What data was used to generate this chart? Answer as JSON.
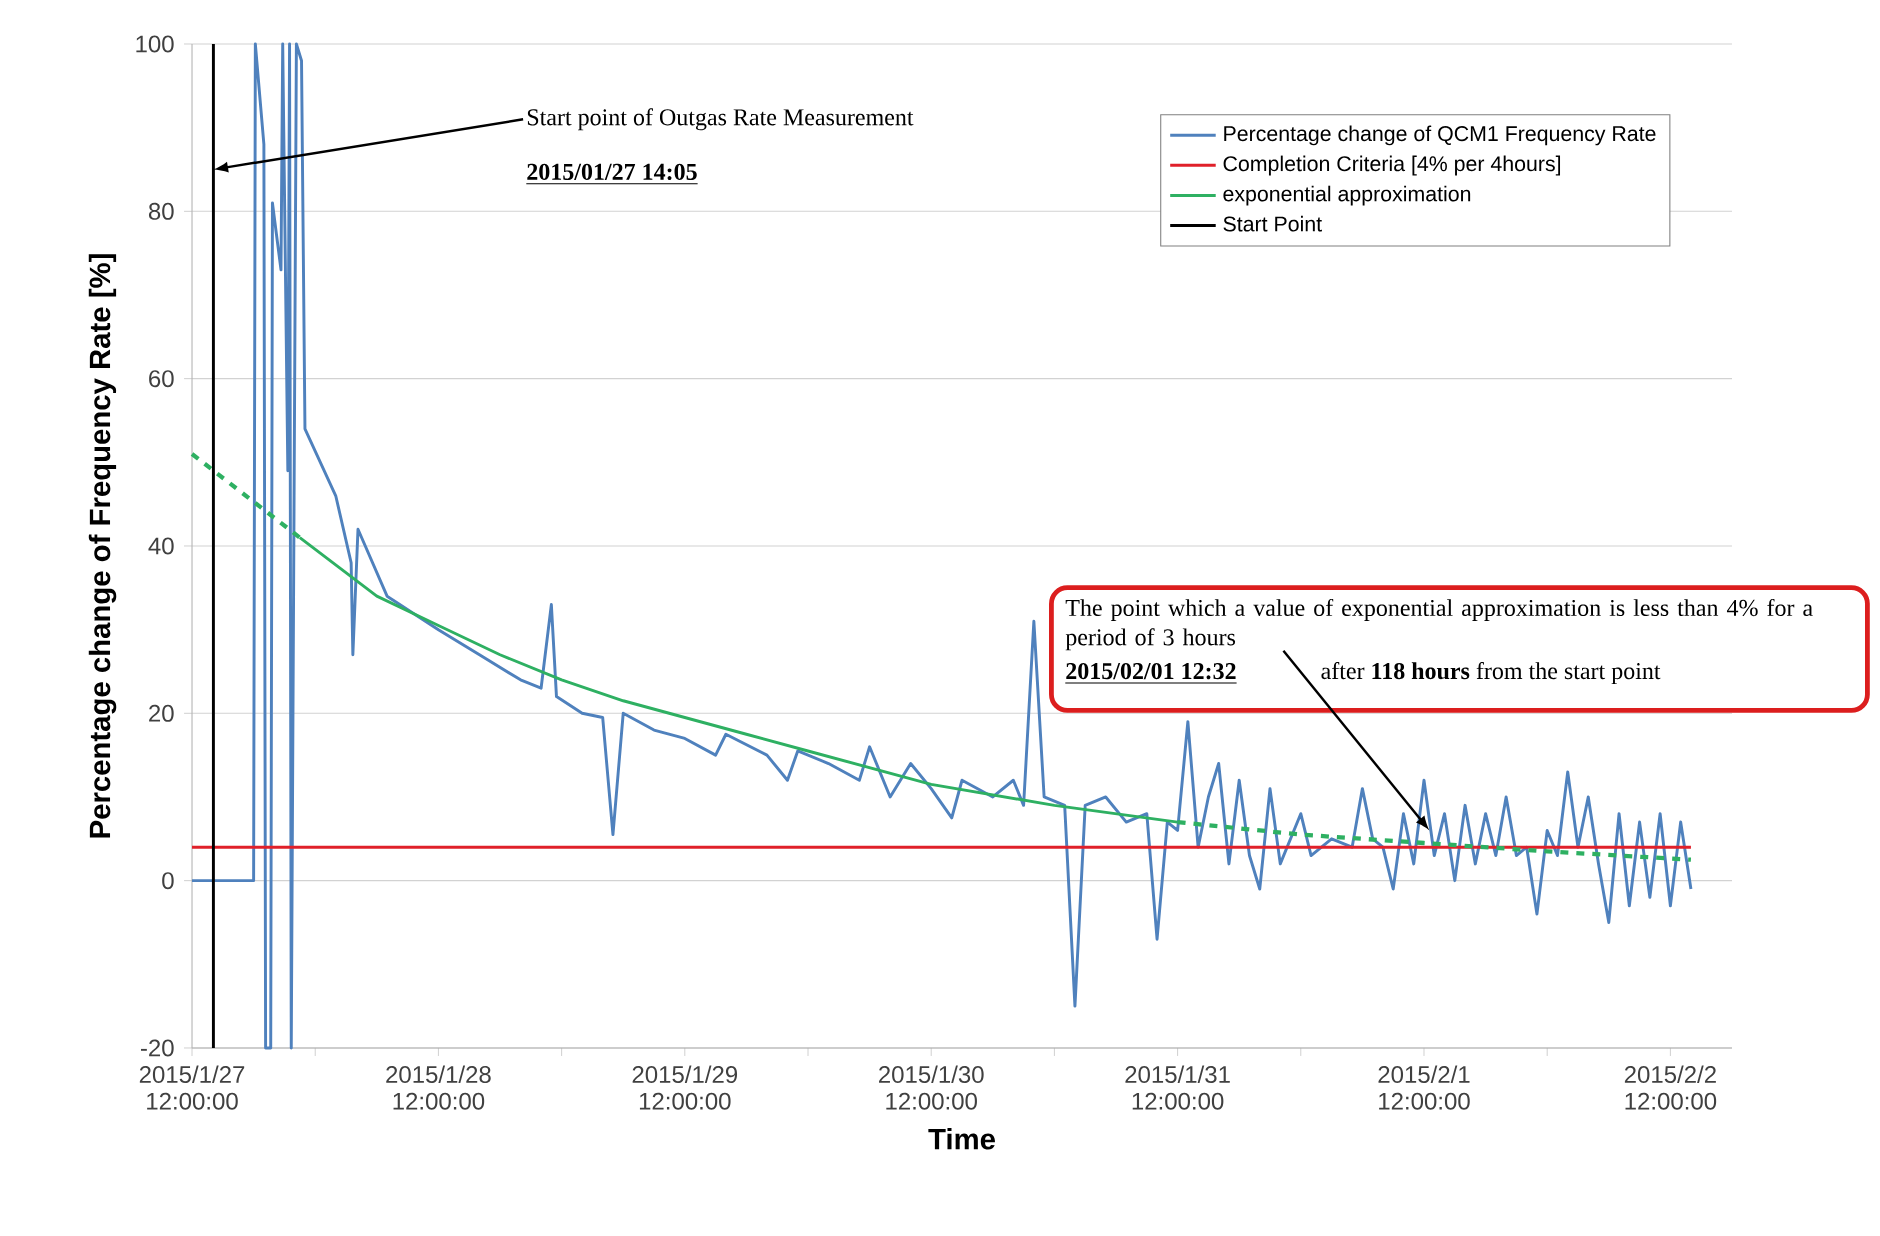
{
  "chart_data": {
    "type": "line",
    "xlabel": "Time",
    "ylabel": "Percentage change of Frequency Rate [%]",
    "xlim": [
      "2015-01-27T12:00",
      "2015-02-02T18:00"
    ],
    "xticks": [
      {
        "value": "2015-01-27T12:00",
        "label": "2015/1/27 12:00:00"
      },
      {
        "value": "2015-01-28T00:00",
        "label": null
      },
      {
        "value": "2015-01-28T12:00",
        "label": "2015/1/28 12:00:00"
      },
      {
        "value": "2015-01-29T00:00",
        "label": null
      },
      {
        "value": "2015-01-29T12:00",
        "label": "2015/1/29 12:00:00"
      },
      {
        "value": "2015-01-30T00:00",
        "label": null
      },
      {
        "value": "2015-01-30T12:00",
        "label": "2015/1/30 12:00:00"
      },
      {
        "value": "2015-01-31T00:00",
        "label": null
      },
      {
        "value": "2015-01-31T12:00",
        "label": "2015/1/31 12:00:00"
      },
      {
        "value": "2015-02-01T00:00",
        "label": null
      },
      {
        "value": "2015-02-01T12:00",
        "label": "2015/2/1 12:00:00"
      },
      {
        "value": "2015-02-02T00:00",
        "label": null
      },
      {
        "value": "2015-02-02T12:00",
        "label": "2015/2/2 12:00:00"
      }
    ],
    "ylim": [
      -20,
      100
    ],
    "yticks": [
      -20,
      0,
      20,
      40,
      60,
      80,
      100
    ],
    "grid": "y",
    "legend": "top right",
    "marker": "none",
    "series": [
      {
        "name": "Percentage change of QCM1 Frequency Rate",
        "color": "#4f81bd",
        "x": [
          "2015-01-27T12:00",
          "2015-01-27T18:00",
          "2015-01-27T18:10",
          "2015-01-27T19:00",
          "2015-01-27T19:10",
          "2015-01-27T19:40",
          "2015-01-27T19:50",
          "2015-01-27T20:40",
          "2015-01-27T20:50",
          "2015-01-27T21:20",
          "2015-01-27T21:30",
          "2015-01-27T21:40",
          "2015-01-27T22:10",
          "2015-01-27T22:40",
          "2015-01-27T23:00",
          "2015-01-28T02:00",
          "2015-01-28T03:30",
          "2015-01-28T03:40",
          "2015-01-28T04:10",
          "2015-01-28T07:00",
          "2015-01-28T12:00",
          "2015-01-28T16:00",
          "2015-01-28T20:00",
          "2015-01-28T22:00",
          "2015-01-28T23:00",
          "2015-01-28T23:30",
          "2015-01-29T02:00",
          "2015-01-29T04:00",
          "2015-01-29T05:00",
          "2015-01-29T06:00",
          "2015-01-29T09:00",
          "2015-01-29T12:00",
          "2015-01-29T15:00",
          "2015-01-29T16:00",
          "2015-01-29T20:00",
          "2015-01-29T22:00",
          "2015-01-29T23:00",
          "2015-01-30T02:00",
          "2015-01-30T05:00",
          "2015-01-30T06:00",
          "2015-01-30T08:00",
          "2015-01-30T10:00",
          "2015-01-30T12:00",
          "2015-01-30T14:00",
          "2015-01-30T15:00",
          "2015-01-30T18:00",
          "2015-01-30T20:00",
          "2015-01-30T21:00",
          "2015-01-30T22:00",
          "2015-01-30T23:00",
          "2015-01-31T01:00",
          "2015-01-31T02:00",
          "2015-01-31T03:00",
          "2015-01-31T05:00",
          "2015-01-31T07:00",
          "2015-01-31T09:00",
          "2015-01-31T10:00",
          "2015-01-31T11:00",
          "2015-01-31T12:00",
          "2015-01-31T13:00",
          "2015-01-31T14:00",
          "2015-01-31T15:00",
          "2015-01-31T16:00",
          "2015-01-31T17:00",
          "2015-01-31T18:00",
          "2015-01-31T19:00",
          "2015-01-31T20:00",
          "2015-01-31T21:00",
          "2015-01-31T22:00",
          "2015-02-01T00:00",
          "2015-02-01T01:00",
          "2015-02-01T03:00",
          "2015-02-01T05:00",
          "2015-02-01T06:00",
          "2015-02-01T07:00",
          "2015-02-01T08:00",
          "2015-02-01T09:00",
          "2015-02-01T10:00",
          "2015-02-01T11:00",
          "2015-02-01T12:00",
          "2015-02-01T13:00",
          "2015-02-01T14:00",
          "2015-02-01T15:00",
          "2015-02-01T16:00",
          "2015-02-01T17:00",
          "2015-02-01T18:00",
          "2015-02-01T19:00",
          "2015-02-01T20:00",
          "2015-02-01T21:00",
          "2015-02-01T22:00",
          "2015-02-01T23:00",
          "2015-02-02T00:00",
          "2015-02-02T01:00",
          "2015-02-02T02:00",
          "2015-02-02T03:00",
          "2015-02-02T04:00",
          "2015-02-02T05:00",
          "2015-02-02T06:00",
          "2015-02-02T07:00",
          "2015-02-02T08:00",
          "2015-02-02T09:00",
          "2015-02-02T10:00",
          "2015-02-02T11:00",
          "2015-02-02T12:00",
          "2015-02-02T13:00",
          "2015-02-02T14:00"
        ],
        "values": [
          0,
          0,
          100,
          88,
          -20,
          -20,
          81,
          73,
          100,
          49,
          100,
          -20,
          100,
          98,
          54,
          46,
          38,
          27,
          42,
          34,
          30,
          27,
          24,
          23,
          33,
          22,
          20,
          19.5,
          5.5,
          20,
          18,
          17,
          15,
          17.5,
          15,
          12,
          15.5,
          14,
          12,
          16,
          10,
          14,
          11,
          7.5,
          12,
          10,
          12,
          9,
          31,
          10,
          9,
          -15,
          9,
          10,
          7,
          8,
          -7,
          7,
          6,
          19,
          4,
          10,
          14,
          2,
          12,
          3,
          -1,
          11,
          2,
          8,
          3,
          5,
          4,
          11,
          5,
          4,
          -1,
          8,
          2,
          12,
          3,
          8,
          0,
          9,
          2,
          8,
          3,
          10,
          3,
          4,
          -4,
          6,
          3,
          13,
          4,
          10,
          2,
          -5,
          8,
          -3,
          7,
          -2,
          8,
          -3,
          7,
          -1
        ]
      },
      {
        "name": "Completion Criteria [4% per 4hours]",
        "color": "#e0202a",
        "x": [
          "2015-01-27T12:00",
          "2015-02-02T14:00"
        ],
        "values": [
          4,
          4
        ]
      },
      {
        "name": "exponential approximation",
        "color": "#2eb062",
        "x": [
          "2015-01-27T22:30",
          "2015-01-28T06:00",
          "2015-01-28T12:00",
          "2015-01-28T18:00",
          "2015-01-29T00:00",
          "2015-01-29T06:00",
          "2015-01-29T12:00",
          "2015-01-29T18:00",
          "2015-01-30T00:00",
          "2015-01-30T12:00",
          "2015-01-31T00:00",
          "2015-01-31T12:00"
        ],
        "values": [
          41,
          34,
          30.5,
          27,
          24,
          21.5,
          19.5,
          17.5,
          15.5,
          11.5,
          9,
          7
        ]
      },
      {
        "color": "#2eb062",
        "line_style": "dashed",
        "x": [
          "2015-01-27T12:00",
          "2015-01-27T22:30"
        ],
        "values": [
          51,
          41
        ]
      },
      {
        "color": "#2eb062",
        "line_style": "dashed",
        "x": [
          "2015-01-31T12:00",
          "2015-02-01T00:00",
          "2015-02-01T12:00",
          "2015-02-02T00:00",
          "2015-02-02T14:00"
        ],
        "values": [
          7,
          5.5,
          4.5,
          3.5,
          2.5
        ]
      },
      {
        "name": "Start Point",
        "color": "#000000",
        "x": [
          "2015-01-27T14:05",
          "2015-01-27T14:05"
        ],
        "values": [
          -20,
          100
        ]
      }
    ],
    "annotations": [
      {
        "text": "Start point of Outgas Rate Measurement",
        "x": "2015-01-27T14:05",
        "y": 85
      },
      "2015/01/27 14:05",
      {
        "text": "The point which a value of exponential approximation is less than 4% for a period of 3 hours",
        "x": "2015-02-01T12:32",
        "y": 6
      },
      "2015/02/01 12:32",
      "after **118 hours** from the start point"
    ]
  }
}
